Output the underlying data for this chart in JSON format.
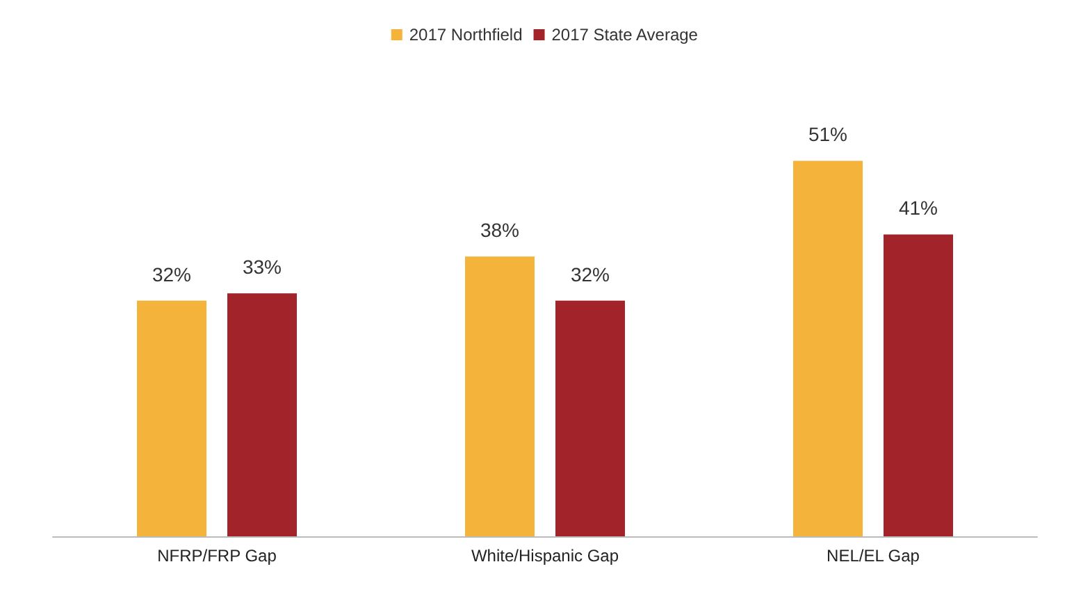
{
  "chart_data": {
    "type": "bar",
    "categories": [
      "NFRP/FRP Gap",
      "White/Hispanic Gap",
      "NEL/EL Gap"
    ],
    "series": [
      {
        "name": "2017 Northfield",
        "color": "#f4b33a",
        "values": [
          32,
          38,
          51
        ],
        "value_labels": [
          "32%",
          "38%",
          "51%"
        ]
      },
      {
        "name": "2017 State Average",
        "color": "#a3232a",
        "values": [
          33,
          32,
          41
        ],
        "value_labels": [
          "33%",
          "32%",
          "41%"
        ]
      }
    ],
    "legend": "top",
    "grid": false
  }
}
